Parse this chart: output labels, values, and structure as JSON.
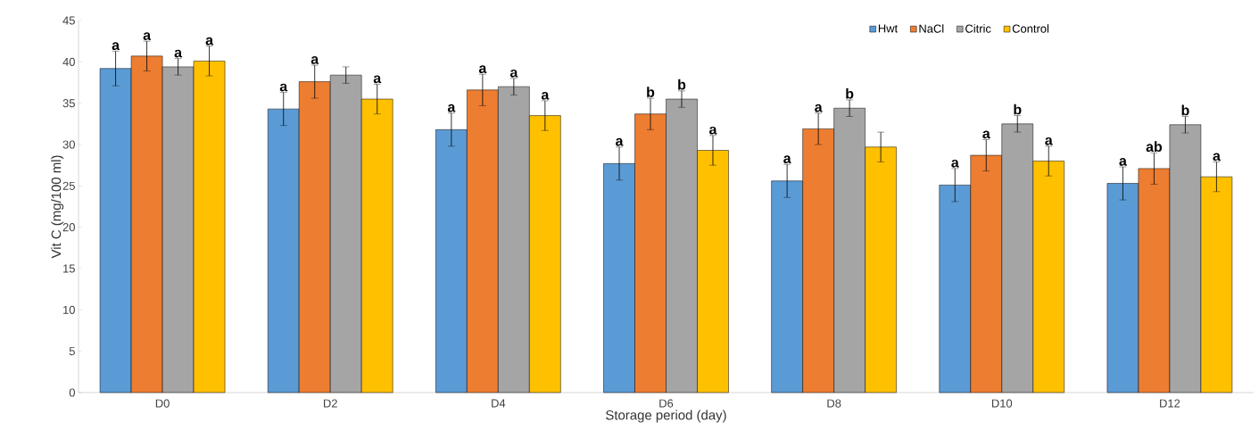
{
  "chart_data": {
    "type": "bar",
    "xlabel": "Storage period (day)",
    "ylabel": "Vit C (mg/100 ml)",
    "categories": [
      "D0",
      "D2",
      "D4",
      "D6",
      "D8",
      "D10",
      "D12"
    ],
    "series": [
      {
        "name": "Hwt",
        "color": "#5b9bd5",
        "values": [
          39.2,
          34.3,
          31.8,
          27.7,
          25.6,
          25.1,
          25.3
        ],
        "errors": [
          2.1,
          2.0,
          2.0,
          2.0,
          2.0,
          2.0,
          2.0
        ],
        "value_labels": [
          "a",
          "a",
          "a",
          "a",
          "a",
          "a",
          "a"
        ]
      },
      {
        "name": "NaCl",
        "color": "#ed7d31",
        "values": [
          40.7,
          37.6,
          36.6,
          33.7,
          31.9,
          28.7,
          27.1
        ],
        "errors": [
          1.8,
          2.0,
          1.9,
          1.9,
          1.9,
          1.9,
          1.9
        ],
        "value_labels": [
          "a",
          "a",
          "a",
          "b",
          "a",
          "a",
          "ab"
        ]
      },
      {
        "name": "Citric",
        "color": "#a5a5a5",
        "values": [
          39.4,
          38.4,
          37.0,
          35.5,
          34.4,
          32.5,
          32.4
        ],
        "errors": [
          1.0,
          1.0,
          1.0,
          1.0,
          1.0,
          1.0,
          1.0
        ],
        "value_labels": [
          "a",
          null,
          "a",
          "b",
          "b",
          "b",
          "b"
        ]
      },
      {
        "name": "Control",
        "color": "#ffc000",
        "values": [
          40.1,
          35.5,
          33.5,
          29.3,
          29.7,
          28.0,
          26.1
        ],
        "errors": [
          1.8,
          1.8,
          1.8,
          1.8,
          1.8,
          1.8,
          1.8
        ],
        "value_labels": [
          "a",
          "a",
          "a",
          "a",
          null,
          "a",
          "a"
        ]
      }
    ],
    "ylim": [
      0,
      45
    ],
    "yticks": [
      0,
      5,
      10,
      15,
      20,
      25,
      30,
      35,
      40,
      45
    ],
    "legend": "top right"
  }
}
